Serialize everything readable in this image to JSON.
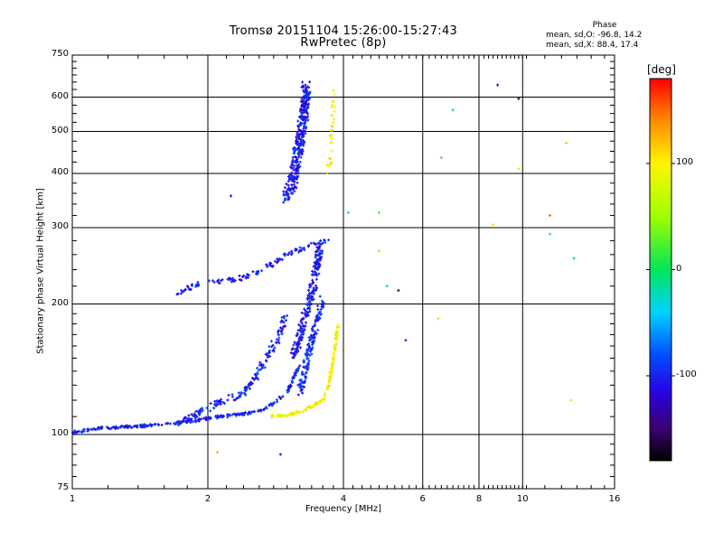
{
  "header": {
    "title": "Tromsø 20151104 15:26:00-15:27:43",
    "subtitle": "RwPretec (8p)"
  },
  "phase_stats": {
    "heading": "Phase",
    "line_o": "mean, sd,O: -96.8, 14.2",
    "line_x": "mean, sd,X:  88.4, 17.4"
  },
  "colorbar": {
    "unit": "[deg]",
    "range": [
      -180,
      180
    ],
    "ticks": [
      "100",
      "0",
      "-100"
    ],
    "tick_values": [
      100,
      0,
      -100
    ]
  },
  "chart_data": {
    "type": "scatter",
    "xlabel": "Frequency [MHz]",
    "ylabel": "Stationary phase Virtual Height [km]",
    "x_scale": "log",
    "y_scale": "log",
    "xlim": [
      1,
      16
    ],
    "ylim": [
      75,
      750
    ],
    "grid": true,
    "x_ticks": [
      "1",
      "2",
      "4",
      "6",
      "8",
      "10",
      "16"
    ],
    "x_tick_values": [
      1,
      2,
      4,
      6,
      8,
      10,
      16
    ],
    "y_ticks": [
      "75",
      "100",
      "200",
      "300",
      "400",
      "500",
      "600",
      "750"
    ],
    "y_tick_values": [
      75,
      100,
      200,
      300,
      400,
      500,
      600,
      750
    ],
    "traces": [
      {
        "name": "",
        "phase": -100,
        "band": 0.012,
        "n": 260,
        "points": [
          [
            1.0,
            101
          ],
          [
            1.1,
            103
          ],
          [
            1.3,
            104
          ],
          [
            1.5,
            105
          ],
          [
            1.8,
            107
          ],
          [
            2.0,
            109
          ],
          [
            2.3,
            111
          ],
          [
            2.6,
            113
          ],
          [
            2.8,
            118
          ],
          [
            3.0,
            125
          ],
          [
            3.1,
            135
          ],
          [
            3.2,
            145
          ]
        ]
      },
      {
        "name": "",
        "phase": -100,
        "band": 0.02,
        "n": 120,
        "points": [
          [
            1.65,
            210
          ],
          [
            1.9,
            222
          ],
          [
            2.1,
            225
          ],
          [
            2.4,
            230
          ],
          [
            2.6,
            238
          ],
          [
            2.8,
            248
          ],
          [
            3.0,
            260
          ],
          [
            3.3,
            270
          ],
          [
            3.7,
            280
          ]
        ]
      },
      {
        "name": "",
        "phase": -100,
        "band": 0.03,
        "n": 160,
        "points": [
          [
            1.7,
            105
          ],
          [
            1.9,
            112
          ],
          [
            2.1,
            118
          ],
          [
            2.4,
            125
          ],
          [
            2.6,
            140
          ],
          [
            2.8,
            160
          ],
          [
            2.9,
            175
          ],
          [
            3.0,
            190
          ]
        ]
      },
      {
        "name": "",
        "phase": -105,
        "band": 0.035,
        "n": 200,
        "points": [
          [
            3.1,
            150
          ],
          [
            3.2,
            170
          ],
          [
            3.3,
            190
          ],
          [
            3.4,
            210
          ],
          [
            3.45,
            230
          ],
          [
            3.5,
            250
          ],
          [
            3.55,
            270
          ]
        ]
      },
      {
        "name": "",
        "phase": -95,
        "band": 0.03,
        "n": 140,
        "points": [
          [
            3.2,
            125
          ],
          [
            3.3,
            145
          ],
          [
            3.4,
            165
          ],
          [
            3.5,
            185
          ],
          [
            3.6,
            205
          ]
        ]
      },
      {
        "name": "",
        "phase": 95,
        "band": 0.012,
        "n": 140,
        "points": [
          [
            2.75,
            110
          ],
          [
            3.0,
            111
          ],
          [
            3.2,
            113
          ],
          [
            3.4,
            116
          ],
          [
            3.6,
            120
          ],
          [
            3.7,
            128
          ],
          [
            3.75,
            138
          ],
          [
            3.8,
            150
          ],
          [
            3.85,
            165
          ],
          [
            3.9,
            180
          ]
        ]
      },
      {
        "name": "",
        "phase": -105,
        "band": 0.045,
        "n": 320,
        "points": [
          [
            3.0,
            350
          ],
          [
            3.1,
            390
          ],
          [
            3.15,
            430
          ],
          [
            3.2,
            480
          ],
          [
            3.25,
            530
          ],
          [
            3.3,
            580
          ],
          [
            3.3,
            640
          ]
        ]
      },
      {
        "name": "",
        "phase": 100,
        "band": 0.02,
        "n": 30,
        "points": [
          [
            3.7,
            400
          ],
          [
            3.75,
            440
          ],
          [
            3.75,
            480
          ],
          [
            3.8,
            530
          ],
          [
            3.8,
            620
          ]
        ]
      }
    ],
    "scattered_points": [
      {
        "x": 2.25,
        "y": 355,
        "phase": -120
      },
      {
        "x": 2.9,
        "y": 90,
        "phase": -100
      },
      {
        "x": 2.1,
        "y": 91,
        "phase": 130
      },
      {
        "x": 4.1,
        "y": 325,
        "phase": 10
      },
      {
        "x": 4.8,
        "y": 325,
        "phase": 20
      },
      {
        "x": 4.8,
        "y": 265,
        "phase": 120
      },
      {
        "x": 5.0,
        "y": 220,
        "phase": -5
      },
      {
        "x": 5.3,
        "y": 215,
        "phase": -150
      },
      {
        "x": 5.5,
        "y": 165,
        "phase": -90
      },
      {
        "x": 6.5,
        "y": 185,
        "phase": 110
      },
      {
        "x": 6.6,
        "y": 435,
        "phase": 20
      },
      {
        "x": 7.0,
        "y": 560,
        "phase": -10
      },
      {
        "x": 8.6,
        "y": 305,
        "phase": 110
      },
      {
        "x": 8.8,
        "y": 640,
        "phase": -120
      },
      {
        "x": 9.8,
        "y": 595,
        "phase": -160
      },
      {
        "x": 9.8,
        "y": 410,
        "phase": 110
      },
      {
        "x": 11.5,
        "y": 320,
        "phase": 150
      },
      {
        "x": 11.5,
        "y": 290,
        "phase": 10
      },
      {
        "x": 12.5,
        "y": 470,
        "phase": 120
      },
      {
        "x": 12.8,
        "y": 120,
        "phase": 110
      },
      {
        "x": 13.0,
        "y": 255,
        "phase": -20
      }
    ]
  }
}
